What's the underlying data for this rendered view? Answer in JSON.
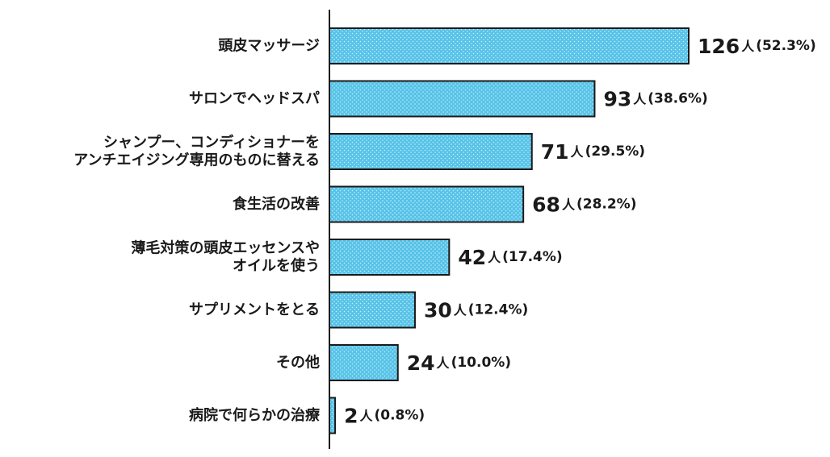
{
  "chart_data": {
    "type": "bar",
    "orientation": "horizontal",
    "categories": [
      [
        "頭皮マッサージ"
      ],
      [
        "サロンでヘッドスパ"
      ],
      [
        "シャンプー、コンディショナーを",
        "アンチエイジング専用のものに替える"
      ],
      [
        "食生活の改善"
      ],
      [
        "薄毛対策の頭皮エッセンスや",
        "オイルを使う"
      ],
      [
        "サプリメントをとる"
      ],
      [
        "その他"
      ],
      [
        "病院で何らかの治療"
      ]
    ],
    "values": [
      126,
      93,
      71,
      68,
      42,
      30,
      24,
      2
    ],
    "value_labels": [
      "126",
      "93",
      "71",
      "68",
      "42",
      "30",
      "24",
      "2"
    ],
    "unit": "人",
    "percent_labels": [
      "(52.3%)",
      "(38.6%)",
      "(29.5%)",
      "(28.2%)",
      "(17.4%)",
      "(12.4%)",
      "(10.0%)",
      "(0.8%)"
    ],
    "xlim": [
      0,
      126
    ],
    "bar_color": "#56c3e8",
    "bar_dot_color": "#c9ecf8",
    "bar_outline_color": "#1a1a1a",
    "axis_color": "#1a1a1a",
    "text_color": "#1a1a1a",
    "grid": false,
    "legend": "none"
  }
}
